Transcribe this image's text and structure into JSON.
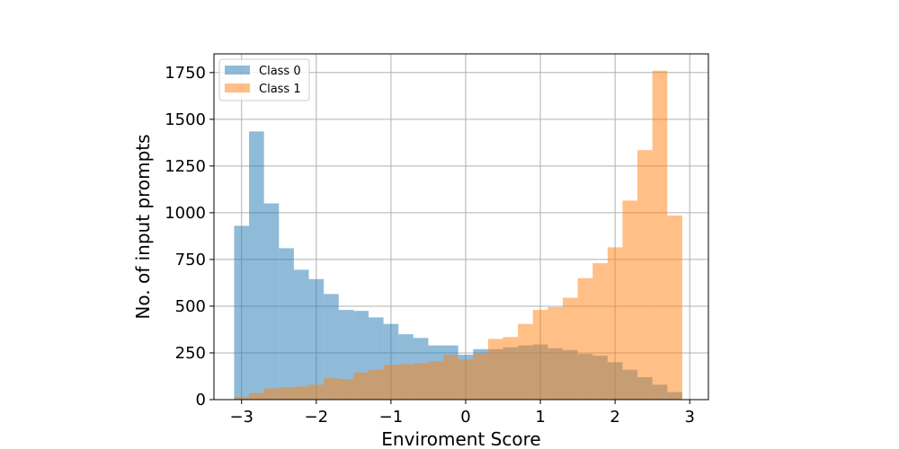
{
  "chart_data": {
    "type": "bar",
    "subtype": "overlapping-histogram",
    "title": "",
    "xlabel": "Enviroment Score",
    "ylabel": "No. of input prompts",
    "xlim": [
      -3.37,
      3.25
    ],
    "ylim": [
      0,
      1850
    ],
    "xticks": [
      -3,
      -2,
      -1,
      0,
      1,
      2,
      3
    ],
    "xtick_labels": [
      "−3",
      "−2",
      "−1",
      "0",
      "1",
      "2",
      "3"
    ],
    "yticks": [
      0,
      250,
      500,
      750,
      1000,
      1250,
      1500,
      1750
    ],
    "ytick_labels": [
      "0",
      "250",
      "500",
      "750",
      "1000",
      "1250",
      "1500",
      "1750"
    ],
    "grid": true,
    "legend_position": "upper-left",
    "bin_edges": [
      -3.1,
      -2.9,
      -2.7,
      -2.5,
      -2.3,
      -2.1,
      -1.9,
      -1.7,
      -1.5,
      -1.3,
      -1.1,
      -0.9,
      -0.7,
      -0.5,
      -0.3,
      -0.1,
      0.1,
      0.3,
      0.5,
      0.7,
      0.9,
      1.1,
      1.3,
      1.5,
      1.7,
      1.9,
      2.1,
      2.3,
      2.5,
      2.7,
      2.9
    ],
    "series": [
      {
        "name": "Class 0",
        "color": "#1f77b4",
        "opacity": 0.5,
        "values": [
          930,
          1435,
          1050,
          810,
          695,
          645,
          565,
          480,
          475,
          440,
          405,
          350,
          330,
          290,
          290,
          240,
          270,
          270,
          280,
          290,
          295,
          275,
          265,
          245,
          235,
          200,
          160,
          120,
          80,
          40
        ]
      },
      {
        "name": "Class 1",
        "color": "#ff7f0e",
        "opacity": 0.5,
        "values": [
          15,
          35,
          60,
          65,
          70,
          80,
          115,
          110,
          145,
          160,
          185,
          190,
          195,
          205,
          240,
          215,
          245,
          325,
          335,
          405,
          480,
          495,
          545,
          650,
          730,
          815,
          1065,
          1335,
          1760,
          985
        ]
      }
    ]
  }
}
